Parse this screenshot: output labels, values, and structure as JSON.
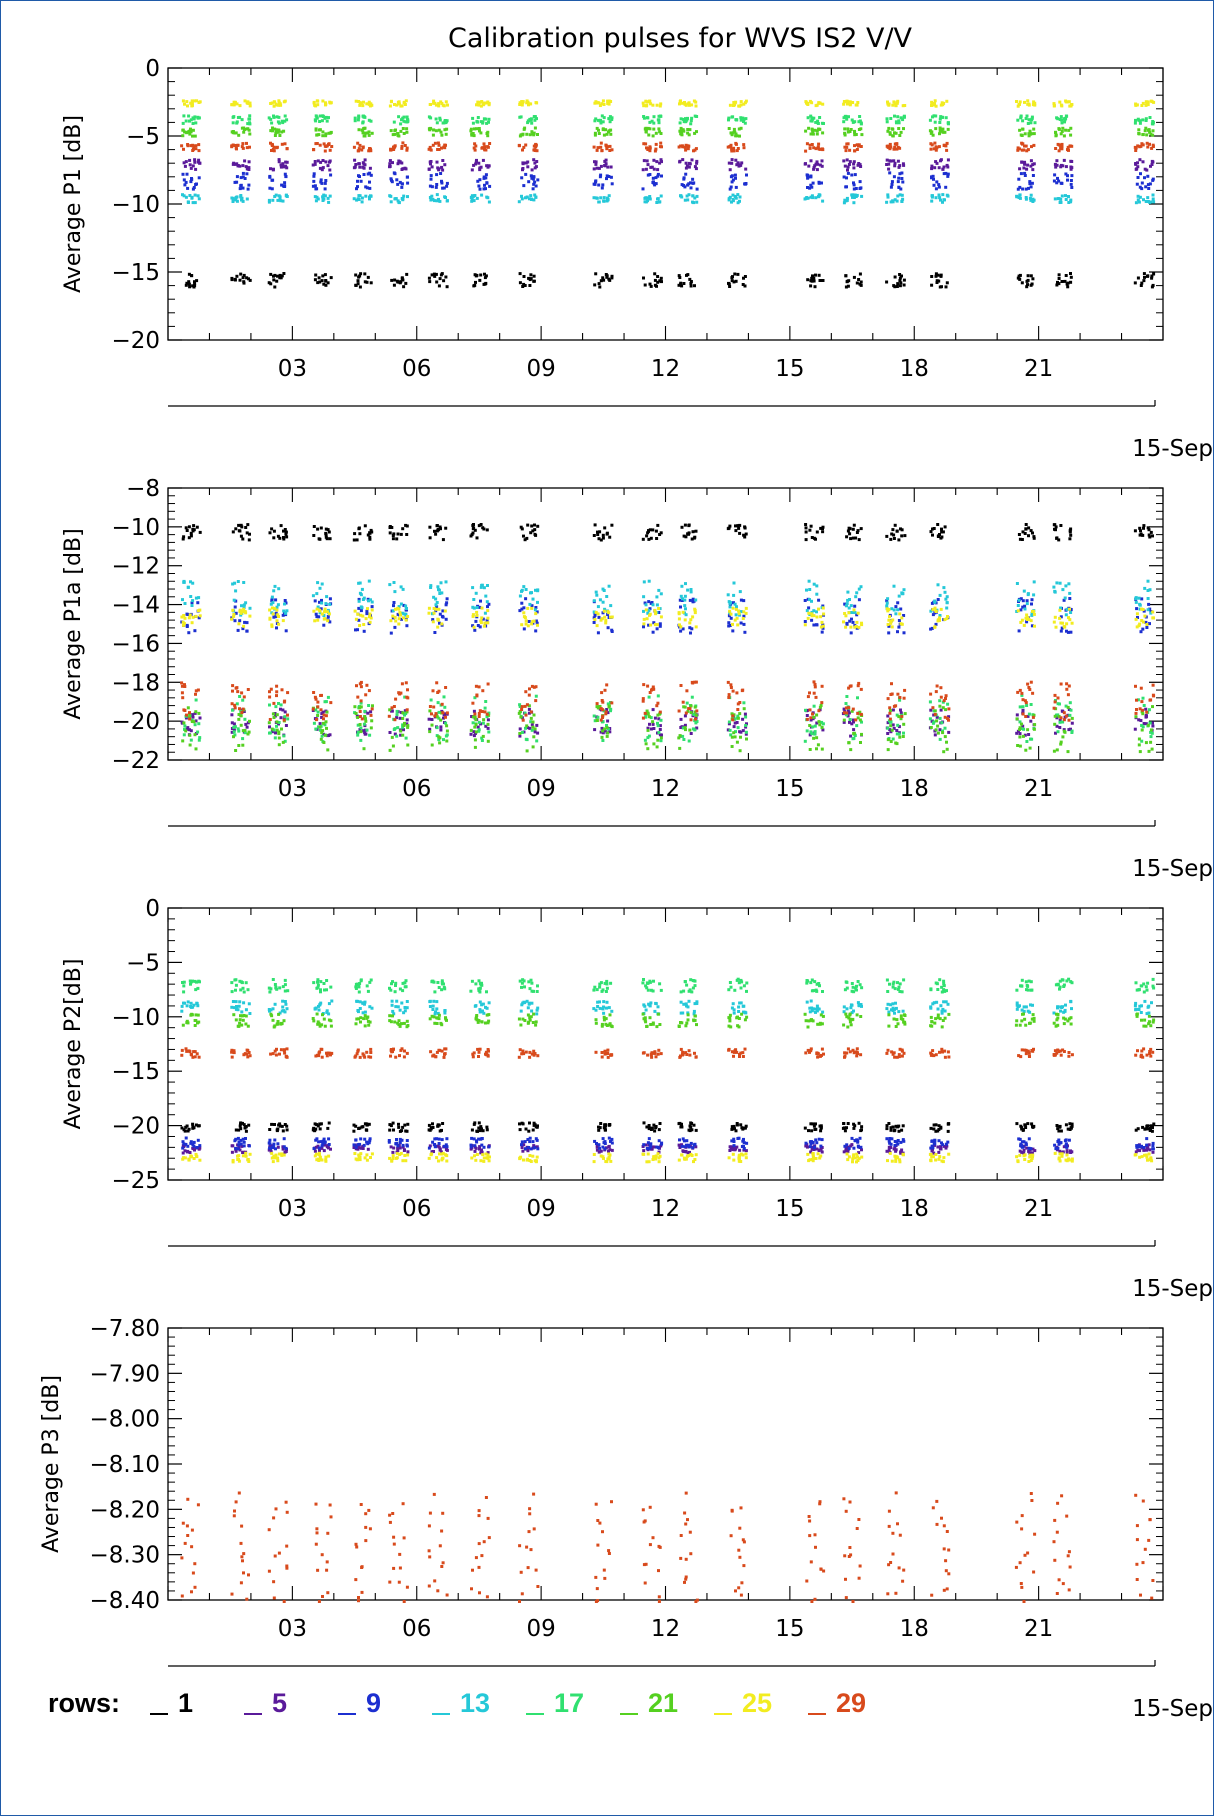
{
  "chart_data": {
    "title": "Calibration pulses for WVS IS2 V/V",
    "x_ticks": [
      "03",
      "06",
      "09",
      "12",
      "15",
      "18",
      "21"
    ],
    "x_range_days": [
      0,
      24
    ],
    "date_label": "15-Sep",
    "legend": {
      "label": "rows:",
      "items": [
        {
          "name": "1",
          "color": "#000000"
        },
        {
          "name": "5",
          "color": "#5a1a9a"
        },
        {
          "name": "9",
          "color": "#1c2fd0"
        },
        {
          "name": "13",
          "color": "#25c8d8"
        },
        {
          "name": "17",
          "color": "#30e070"
        },
        {
          "name": "21",
          "color": "#55d020"
        },
        {
          "name": "25",
          "color": "#f2ec20"
        },
        {
          "name": "29",
          "color": "#d84a1c"
        }
      ]
    },
    "panels": [
      {
        "type": "scatter",
        "ylabel": "Average P1 [dB]",
        "ylim": [
          -20,
          0
        ],
        "ytick_values": [
          0,
          -5,
          -10,
          -15,
          -20
        ],
        "ytick_labels": [
          "0",
          "−5",
          "−10",
          "−15",
          "−20"
        ],
        "series": [
          {
            "name": "1",
            "y": -15.5,
            "spread": 0.5
          },
          {
            "name": "5",
            "y": -7.0,
            "spread": 0.4
          },
          {
            "name": "9",
            "y": -8.2,
            "spread": 0.6
          },
          {
            "name": "13",
            "y": -9.5,
            "spread": 0.3
          },
          {
            "name": "17",
            "y": -3.7,
            "spread": 0.3
          },
          {
            "name": "21",
            "y": -4.6,
            "spread": 0.3
          },
          {
            "name": "25",
            "y": -2.5,
            "spread": 0.2
          },
          {
            "name": "29",
            "y": -5.7,
            "spread": 0.3
          }
        ]
      },
      {
        "type": "scatter",
        "ylabel": "Average P1a [dB]",
        "ylim": [
          -22,
          -8
        ],
        "ytick_values": [
          -8,
          -10,
          -12,
          -14,
          -16,
          -18,
          -20,
          -22
        ],
        "ytick_labels": [
          "−8",
          "−10",
          "−12",
          "−14",
          "−16",
          "−18",
          "−20",
          "−22"
        ],
        "series": [
          {
            "name": "1",
            "y": -10.2,
            "spread": 0.4
          },
          {
            "name": "5",
            "y": -20.0,
            "spread": 0.7
          },
          {
            "name": "9",
            "y": -14.5,
            "spread": 0.9
          },
          {
            "name": "13",
            "y": -13.6,
            "spread": 0.9
          },
          {
            "name": "17",
            "y": -19.8,
            "spread": 1.2
          },
          {
            "name": "21",
            "y": -20.3,
            "spread": 1.2
          },
          {
            "name": "25",
            "y": -14.6,
            "spread": 0.5
          },
          {
            "name": "29",
            "y": -18.9,
            "spread": 1.0
          }
        ]
      },
      {
        "type": "scatter",
        "ylabel": "Average P2[dB]",
        "ylim": [
          -25,
          0
        ],
        "ytick_values": [
          0,
          -5,
          -10,
          -15,
          -20,
          -25
        ],
        "ytick_labels": [
          "0",
          "−5",
          "−10",
          "−15",
          "−20",
          "−25"
        ],
        "series": [
          {
            "name": "1",
            "y": -20.0,
            "spread": 0.4
          },
          {
            "name": "5",
            "y": -22.0,
            "spread": 0.4
          },
          {
            "name": "9",
            "y": -21.5,
            "spread": 0.5
          },
          {
            "name": "13",
            "y": -9.0,
            "spread": 0.6
          },
          {
            "name": "17",
            "y": -7.0,
            "spread": 0.6
          },
          {
            "name": "21",
            "y": -10.2,
            "spread": 0.6
          },
          {
            "name": "25",
            "y": -22.8,
            "spread": 0.4
          },
          {
            "name": "29",
            "y": -13.2,
            "spread": 0.4
          }
        ]
      },
      {
        "type": "scatter",
        "ylabel": "Average P3 [dB]",
        "ylim": [
          -8.4,
          -7.8
        ],
        "ytick_values": [
          -7.8,
          -7.9,
          -8.0,
          -8.1,
          -8.2,
          -8.3,
          -8.4
        ],
        "ytick_labels": [
          "−7.80",
          "−7.90",
          "−8.00",
          "−8.10",
          "−8.20",
          "−8.30",
          "−8.40"
        ],
        "series": [
          {
            "name": "29",
            "y_range": [
              -8.4,
              -8.16
            ]
          }
        ]
      }
    ]
  }
}
